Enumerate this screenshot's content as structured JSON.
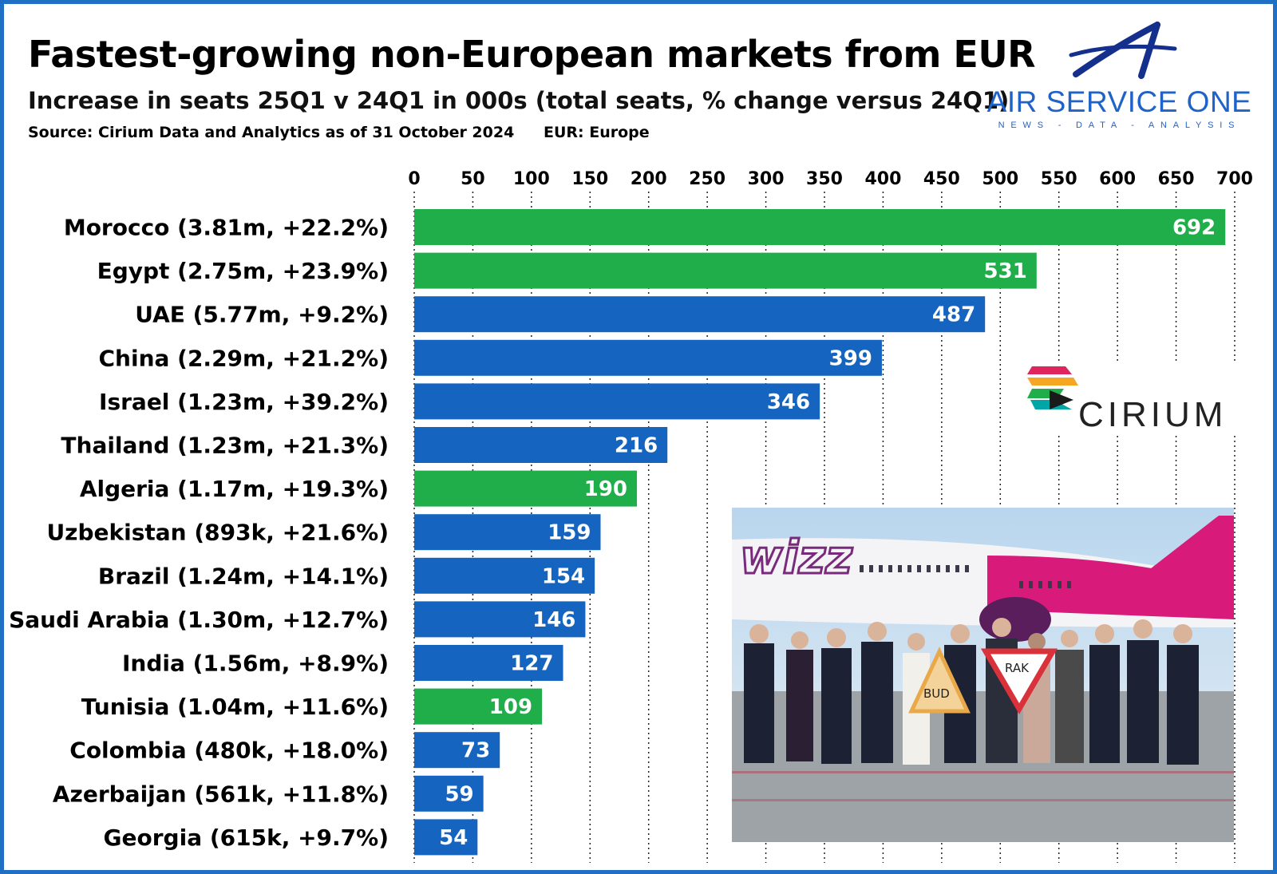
{
  "chart_data": {
    "type": "bar",
    "orientation": "horizontal",
    "title": "Fastest-growing non-European markets from EUR",
    "subtitle": "Increase in seats 25Q1 v 24Q1 in 000s (total seats, % change versus 24Q1)",
    "source": "Source: Cirium Data and Analytics as of 31 October 2024",
    "note": "EUR: Europe",
    "categories": [
      "Morocco (3.81m, +22.2%)",
      "Egypt (2.75m, +23.9%)",
      "UAE (5.77m, +9.2%)",
      "China (2.29m, +21.2%)",
      "Israel (1.23m, +39.2%)",
      "Thailand (1.23m, +21.3%)",
      "Algeria (1.17m, +19.3%)",
      "Uzbekistan (893k, +21.6%)",
      "Brazil (1.24m, +14.1%)",
      "Saudi Arabia (1.30m, +12.7%)",
      "India (1.56m, +8.9%)",
      "Tunisia (1.04m, +11.6%)",
      "Colombia (480k, +18.0%)",
      "Azerbaijan (561k, +11.8%)",
      "Georgia (615k, +9.7%)"
    ],
    "values": [
      692,
      531,
      487,
      399,
      346,
      216,
      190,
      159,
      154,
      146,
      127,
      109,
      73,
      59,
      54
    ],
    "bar_colors": [
      "#1fae4a",
      "#1fae4a",
      "#1565c0",
      "#1565c0",
      "#1565c0",
      "#1565c0",
      "#1fae4a",
      "#1565c0",
      "#1565c0",
      "#1565c0",
      "#1565c0",
      "#1fae4a",
      "#1565c0",
      "#1565c0",
      "#1565c0"
    ],
    "xlim": [
      0,
      700
    ],
    "xticks": [
      0,
      50,
      100,
      150,
      200,
      250,
      300,
      350,
      400,
      450,
      500,
      550,
      600,
      650,
      700
    ],
    "axis_position": "top",
    "grid": true,
    "grid_style": "dotted vertical"
  },
  "branding": {
    "name": "AIR SERVICE ONE",
    "tagline": "NEWS - DATA - ANALYSIS",
    "partner": "CIRIUM",
    "color": "#1f63c9"
  },
  "photo": {
    "airline": "wizz",
    "signs": [
      "BUD",
      "RAK"
    ]
  },
  "colors": {
    "green": "#1fae4a",
    "blue": "#1565c0",
    "border": "#1f6fc5"
  }
}
